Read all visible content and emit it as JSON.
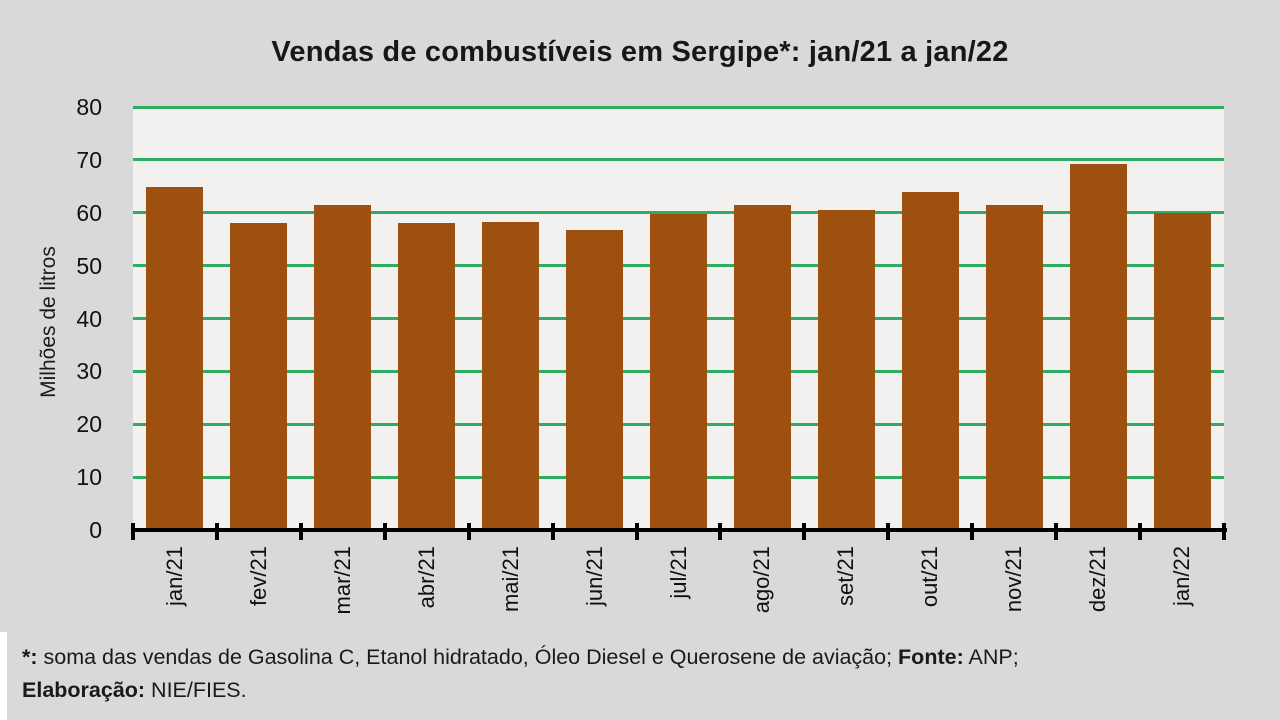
{
  "page": {
    "background": "#D9D9D9"
  },
  "chart_data": {
    "type": "bar",
    "title": "Vendas de combustíveis em Sergipe*: jan/21 a jan/22",
    "xlabel": "",
    "ylabel": "Milhões de litros",
    "categories": [
      "jan/21",
      "fev/21",
      "mar/21",
      "abr/21",
      "mai/21",
      "jun/21",
      "jul/21",
      "ago/21",
      "set/21",
      "out/21",
      "nov/21",
      "dez/21",
      "jan/22"
    ],
    "values": [
      64.8,
      58.0,
      61.5,
      58.1,
      58.3,
      56.7,
      59.8,
      61.5,
      60.5,
      64.0,
      61.5,
      69.3,
      60.0
    ],
    "ylim": [
      0,
      80
    ],
    "yticks": [
      0,
      10,
      20,
      30,
      40,
      50,
      60,
      70,
      80
    ],
    "grid": true,
    "legend_position": "none",
    "bar_color": "#9D500F",
    "gridline_color": "#2EAC62",
    "plot_background": "#F2F1EF",
    "outer_background": "#D9D9D9",
    "axis_color": "#000000"
  },
  "footnote": {
    "star_label": "*:",
    "star_text": " soma das vendas de Gasolina C, Etanol hidratado, Óleo Diesel e Querosene de aviação; ",
    "fonte_label": "Fonte:",
    "fonte_text": " ANP;",
    "elaboracao_label": "Elaboração:",
    "elaboracao_text": " NIE/FIES."
  }
}
